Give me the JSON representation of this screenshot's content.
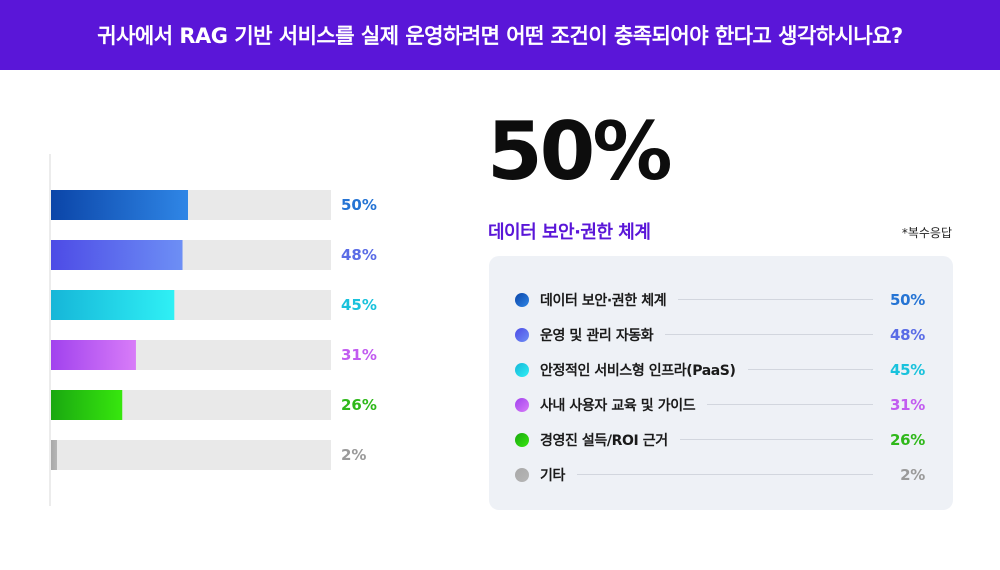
{
  "header": {
    "title": "귀사에서 RAG 기반 서비스를 실제 운영하려면 어떤 조건이 충족되어야 한다고 생각하시나요?"
  },
  "highlight": {
    "value": "50%",
    "label": "데이터 보안·권한 체계"
  },
  "note": "*복수응답",
  "chart_data": {
    "type": "bar",
    "orientation": "horizontal",
    "categories": [
      "데이터 보안·권한 체계",
      "운영 및 관리 자동화",
      "안정적인 서비스형 인프라(PaaS)",
      "사내 사용자 교육 및 가이드",
      "경영진 설득/ROI 근거",
      "기타"
    ],
    "values": [
      50,
      48,
      45,
      31,
      26,
      2
    ],
    "value_labels": [
      "50%",
      "48%",
      "45%",
      "31%",
      "26%",
      "2%"
    ],
    "xlim": [
      0,
      100
    ],
    "grid": false,
    "legend_position": "right",
    "colors": [
      {
        "from": "#0b45a8",
        "to": "#2f86e6",
        "text": "#2574d4"
      },
      {
        "from": "#4d4be6",
        "to": "#6d8ff5",
        "text": "#5a6ce6"
      },
      {
        "from": "#16b6d8",
        "to": "#2ff0f5",
        "text": "#19c2dc"
      },
      {
        "from": "#a142ee",
        "to": "#d87cf8",
        "text": "#c25cf0"
      },
      {
        "from": "#1aa810",
        "to": "#37e70e",
        "text": "#2fb81a"
      },
      {
        "from": "#a8a8a8",
        "to": "#b6b6b6",
        "text": "#9a9a9a"
      }
    ],
    "track_color": "#e9e9e9"
  }
}
